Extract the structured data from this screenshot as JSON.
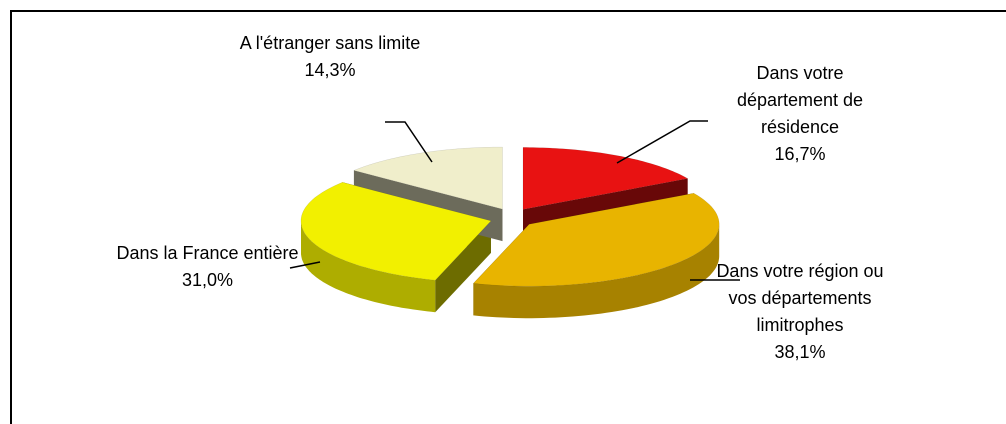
{
  "chart_data": {
    "type": "pie3d",
    "categories": [
      "Dans votre département de résidence",
      "Dans votre région ou vos départements limitrophes",
      "Dans la France entière",
      "A l'étranger sans limite"
    ],
    "values": [
      16.7,
      38.1,
      31.0,
      14.3
    ],
    "value_labels": [
      "16,7%",
      "38,1%",
      "31,0%",
      "14,3%"
    ],
    "colors": [
      "#e81212",
      "#e8b400",
      "#f2f000",
      "#f0eecb"
    ]
  }
}
